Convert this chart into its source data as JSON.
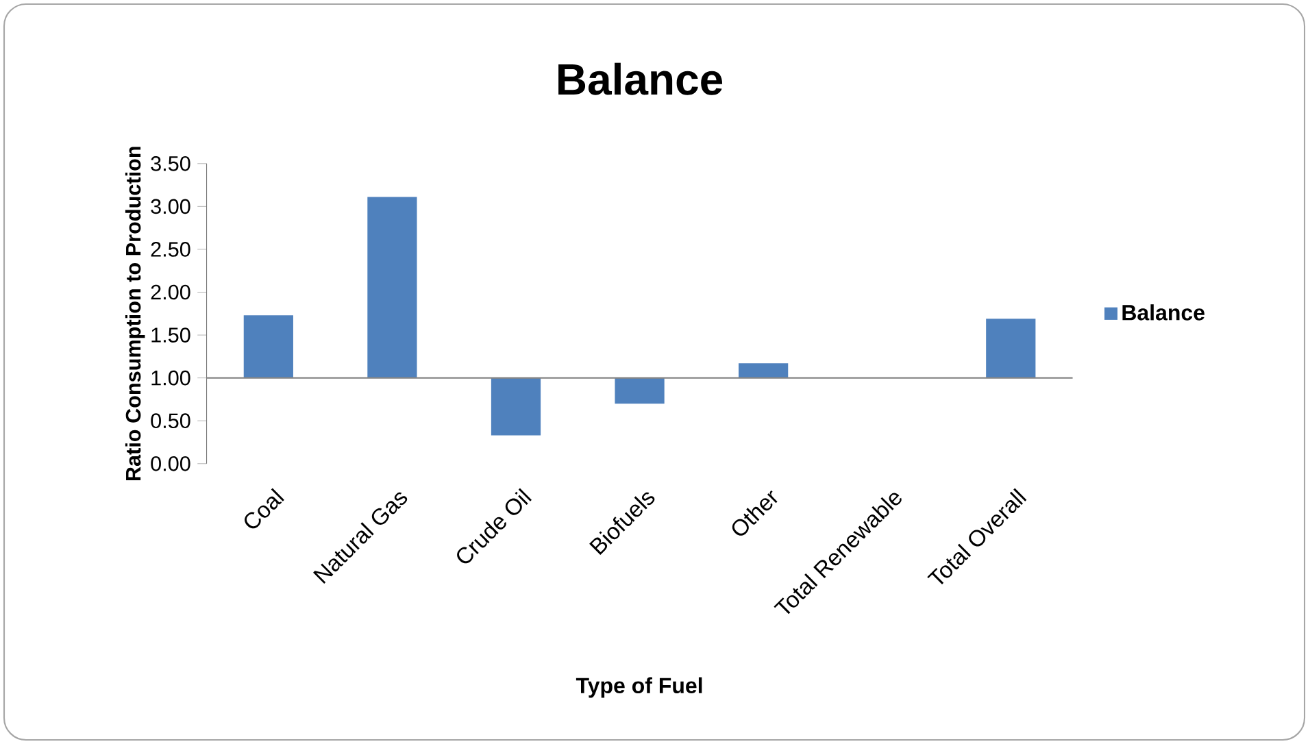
{
  "chart_data": {
    "type": "bar",
    "title": "Balance",
    "xlabel": "Type of Fuel",
    "ylabel": "Ratio Consumption to Production",
    "categories": [
      "Coal",
      "Natural Gas",
      "Crude Oil",
      "Biofuels",
      "Other",
      "Total Renewable",
      "Total Overall"
    ],
    "series": [
      {
        "name": "Balance",
        "color": "#4f81bd",
        "base": [
          1,
          1,
          1,
          1,
          1,
          null,
          1
        ],
        "values": [
          0.73,
          2.11,
          -0.67,
          -0.3,
          0.17,
          0,
          0.69
        ]
      }
    ],
    "ylim": [
      0,
      3.5
    ],
    "yticks": [
      {
        "value": 0,
        "label": "0.00"
      },
      {
        "value": 0.5,
        "label": "0.50"
      },
      {
        "value": 1,
        "label": "1.00"
      },
      {
        "value": 1.5,
        "label": "1.50"
      },
      {
        "value": 2,
        "label": "2.00"
      },
      {
        "value": 2.5,
        "label": "2.50"
      },
      {
        "value": 3,
        "label": "3.00"
      },
      {
        "value": 3.5,
        "label": "3.50"
      }
    ],
    "ref_lines": [
      {
        "axis": "y",
        "value": 1,
        "color": "#868686"
      }
    ],
    "grid": false,
    "legend": "right"
  }
}
